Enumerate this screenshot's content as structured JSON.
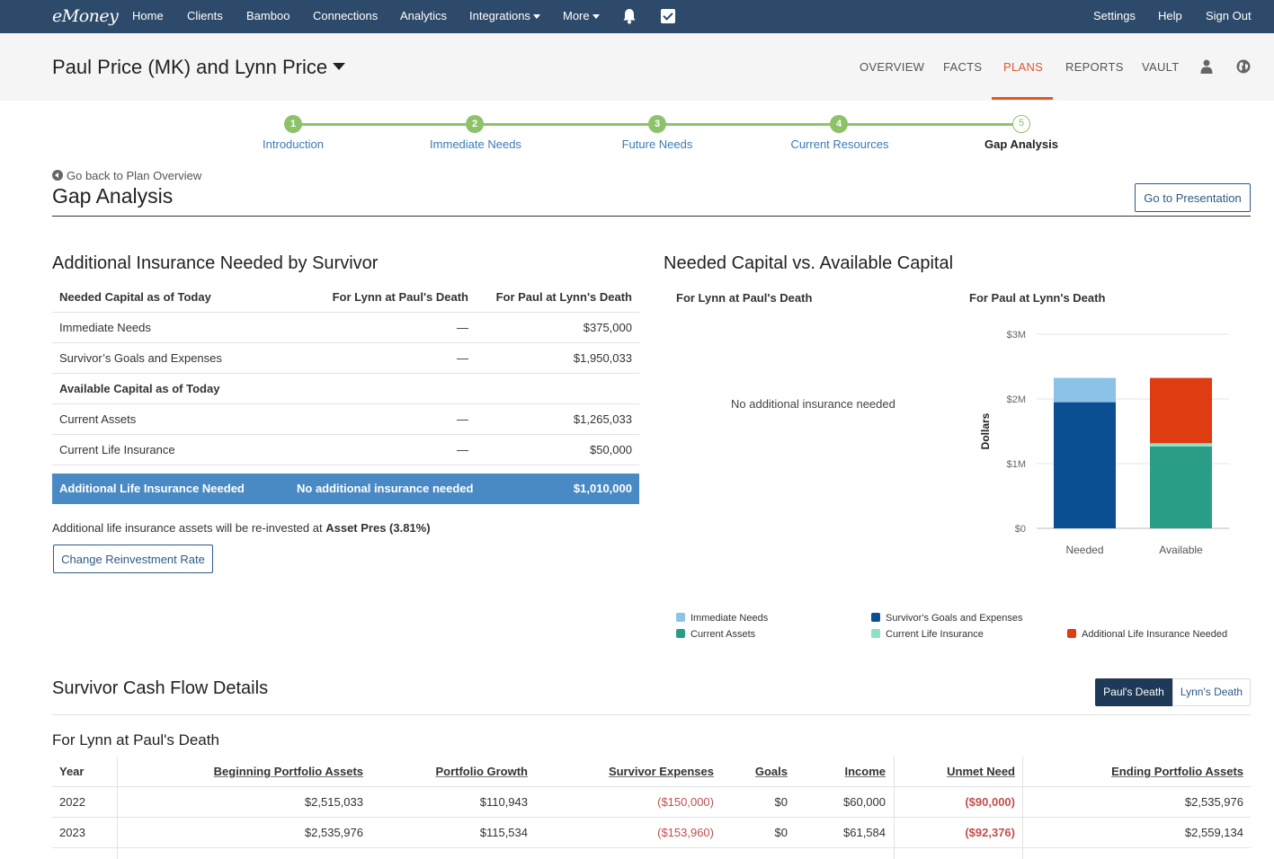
{
  "topnav": {
    "logo": "eMoney",
    "items": [
      "Home",
      "Clients",
      "Bamboo",
      "Connections",
      "Analytics",
      "Integrations",
      "More"
    ],
    "right": [
      "Settings",
      "Help",
      "Sign Out"
    ]
  },
  "client": {
    "name": "Paul Price (MK) and Lynn Price",
    "tabs": [
      "OVERVIEW",
      "FACTS",
      "PLANS",
      "REPORTS",
      "VAULT"
    ],
    "active_tab": "PLANS"
  },
  "stepper": [
    {
      "num": "1",
      "label": "Introduction"
    },
    {
      "num": "2",
      "label": "Immediate Needs"
    },
    {
      "num": "3",
      "label": "Future Needs"
    },
    {
      "num": "4",
      "label": "Current Resources"
    },
    {
      "num": "5",
      "label": "Gap Analysis"
    }
  ],
  "page": {
    "back": "Go back to Plan Overview",
    "title": "Gap Analysis",
    "presentation_btn": "Go to Presentation"
  },
  "insurance": {
    "title": "Additional Insurance Needed by Survivor",
    "headers": [
      "Needed Capital as of Today",
      "For Lynn at Paul's Death",
      "For Paul at Lynn's Death"
    ],
    "rows": [
      {
        "label": "Immediate Needs",
        "lynn": "—",
        "paul": "$375,000"
      },
      {
        "label": "Survivor’s Goals and Expenses",
        "lynn": "—",
        "paul": "$1,950,033"
      }
    ],
    "available_header": "Available Capital as of Today",
    "available_rows": [
      {
        "label": "Current Assets",
        "lynn": "—",
        "paul": "$1,265,033"
      },
      {
        "label": "Current Life Insurance",
        "lynn": "—",
        "paul": "$50,000"
      }
    ],
    "total": {
      "label": "Additional Life Insurance Needed",
      "lynn": "No additional insurance needed",
      "paul": "$1,010,000"
    },
    "note_prefix": "Additional life insurance assets will be re-invested at ",
    "note_rate": "Asset Pres (3.81%)",
    "change_btn": "Change Reinvestment Rate"
  },
  "capital": {
    "title": "Needed Capital vs. Available Capital",
    "left_sub": "For Lynn at Paul's Death",
    "right_sub": "For Paul at Lynn's Death",
    "no_additional": "No additional insurance needed"
  },
  "chart_data": {
    "type": "bar",
    "stacked": true,
    "categories": [
      "Needed",
      "Available"
    ],
    "ylabel": "Dollars",
    "ylim": [
      0,
      3000000
    ],
    "yticks": [
      0,
      1000000,
      2000000,
      3000000
    ],
    "ytick_labels": [
      "$0",
      "$1M",
      "$2M",
      "$3M"
    ],
    "series": [
      {
        "name": "Survivor's Goals and Expenses",
        "values": [
          1950033,
          0
        ],
        "color": "#0b4f93"
      },
      {
        "name": "Immediate Needs",
        "values": [
          375000,
          0
        ],
        "color": "#8bc2e6"
      },
      {
        "name": "Current Assets",
        "values": [
          0,
          1265033
        ],
        "color": "#2a9d87"
      },
      {
        "name": "Current Life Insurance",
        "values": [
          0,
          50000
        ],
        "color": "#8de0c6"
      },
      {
        "name": "Additional Life Insurance Needed",
        "values": [
          0,
          1010000
        ],
        "color": "#e03c12"
      }
    ],
    "legend": [
      "Immediate Needs",
      "Survivor's Goals and Expenses",
      "Current Assets",
      "Current Life Insurance",
      "Additional Life Insurance Needed"
    ],
    "legend_placement": "bottom"
  },
  "cashflow": {
    "title": "Survivor Cash Flow Details",
    "toggle": [
      "Paul's Death",
      "Lynn's Death"
    ],
    "active_toggle": "Paul's Death",
    "subtitle": "For Lynn at Paul's Death",
    "headers": [
      "Year",
      "Beginning Portfolio Assets",
      "Portfolio Growth",
      "Survivor Expenses",
      "Goals",
      "Income",
      "Unmet Need",
      "Ending Portfolio Assets"
    ],
    "rows": [
      [
        "2022",
        "$2,515,033",
        "$110,943",
        "($150,000)",
        "$0",
        "$60,000",
        "($90,000)",
        "$2,535,976"
      ],
      [
        "2023",
        "$2,535,976",
        "$115,534",
        "($153,960)",
        "$0",
        "$61,584",
        "($92,376)",
        "$2,559,134"
      ]
    ]
  }
}
